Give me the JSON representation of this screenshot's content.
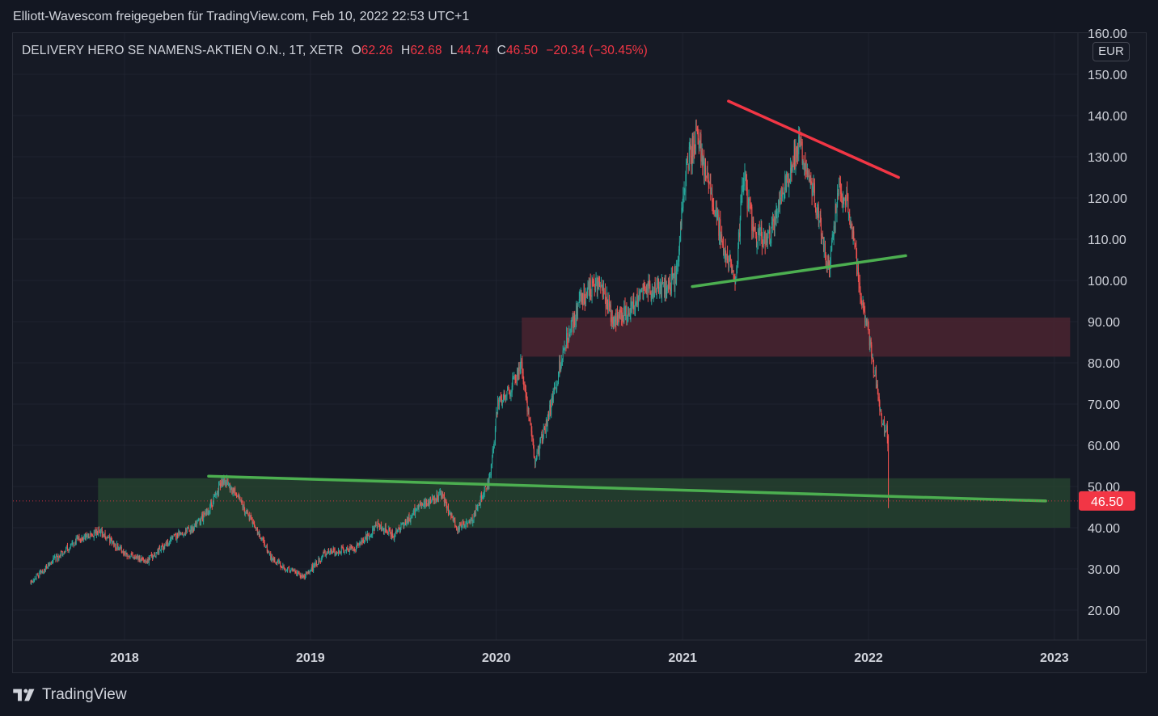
{
  "attribution": "Elliott-Wavescom freigegeben für TradingView.com, Feb 10, 2022 22:53 UTC+1",
  "legend": {
    "symbol": "DELIVERY HERO SE NAMENS-AKTIEN O.N., 1T, XETR",
    "open_label": "O",
    "open": "62.26",
    "high_label": "H",
    "high": "62.68",
    "low_label": "L",
    "low": "44.74",
    "close_label": "C",
    "close": "46.50",
    "change": "−20.34 (−30.45%)"
  },
  "currency": "EUR",
  "brand": "TradingView",
  "colors": {
    "up": "#26a69a",
    "down": "#ef5350",
    "trend_green": "#4caf50",
    "trend_red": "#f23645",
    "price_badge": "#f23645",
    "support_zone": "#2e5533",
    "resistance_zone": "#5b2a33"
  },
  "chart_data": {
    "type": "line",
    "series_style": "candlestick",
    "y_axis": {
      "range": [
        15,
        160
      ],
      "ticks": [
        "160.00",
        "150.00",
        "140.00",
        "130.00",
        "120.00",
        "110.00",
        "100.00",
        "90.00",
        "80.00",
        "70.00",
        "60.00",
        "50.00",
        "40.00",
        "30.00",
        "20.00"
      ],
      "scale": "linear"
    },
    "x_axis": {
      "range": [
        "2017-06-01",
        "2023-02-01"
      ],
      "ticks": [
        "2018",
        "2019",
        "2020",
        "2021",
        "2022",
        "2023"
      ]
    },
    "grid": true,
    "last_price": "46.50",
    "series": [
      {
        "x": [
          "2017-07-01",
          "2017-08-15",
          "2017-10-01",
          "2017-11-15",
          "2018-01-01",
          "2018-02-15",
          "2018-04-01",
          "2018-05-15",
          "2018-06-15",
          "2018-07-15",
          "2018-08-15",
          "2018-09-15",
          "2018-10-15",
          "2018-11-15",
          "2018-12-20",
          "2019-02-01",
          "2019-04-01",
          "2019-05-15",
          "2019-06-15",
          "2019-08-01",
          "2019-09-15",
          "2019-10-15",
          "2019-11-15",
          "2019-12-20",
          "2020-01-05",
          "2020-02-01",
          "2020-02-20",
          "2020-03-18",
          "2020-04-15",
          "2020-05-15",
          "2020-06-15",
          "2020-07-20",
          "2020-08-20",
          "2020-09-20",
          "2020-10-20",
          "2020-11-20",
          "2020-12-20",
          "2021-01-08",
          "2021-02-01",
          "2021-02-20",
          "2021-03-15",
          "2021-04-15",
          "2021-05-01",
          "2021-05-20",
          "2021-06-20",
          "2021-07-20",
          "2021-08-20",
          "2021-09-15",
          "2021-10-15",
          "2021-11-05",
          "2021-11-25",
          "2021-12-15",
          "2022-01-05",
          "2022-01-20",
          "2022-02-01",
          "2022-02-08",
          "2022-02-10"
        ],
        "y": [
          27,
          32,
          37,
          39,
          34,
          32,
          37,
          40,
          44,
          52,
          47,
          40,
          33,
          30,
          28,
          34,
          35,
          41,
          38,
          45,
          48,
          40,
          42,
          52,
          70,
          74,
          80,
          56,
          68,
          85,
          95,
          100,
          90,
          93,
          98,
          98,
          100,
          128,
          135,
          124,
          112,
          100,
          126,
          112,
          110,
          123,
          133,
          122,
          103,
          123,
          118,
          98,
          85,
          72,
          64,
          63,
          46.5
        ]
      }
    ],
    "annotations": [
      {
        "type": "trendline",
        "color": "red",
        "from": [
          "2021-04-01",
          143.5
        ],
        "to": [
          "2022-03-01",
          125
        ]
      },
      {
        "type": "trendline",
        "color": "green",
        "from": [
          "2021-01-20",
          98.5
        ],
        "to": [
          "2022-03-15",
          106
        ]
      },
      {
        "type": "trendline",
        "color": "green",
        "from": [
          "2018-06-15",
          52.5
        ],
        "to": [
          "2022-12-15",
          46.5
        ]
      },
      {
        "type": "zone",
        "color": "resistance",
        "from": [
          "2020-02-20",
          81.5
        ],
        "to": [
          "2023-02-01",
          91
        ]
      },
      {
        "type": "zone",
        "color": "support",
        "from": [
          "2017-11-10",
          40
        ],
        "to": [
          "2023-02-01",
          52
        ]
      }
    ]
  }
}
